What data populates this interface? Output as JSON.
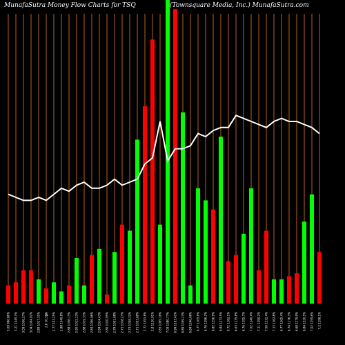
{
  "chart_data": {
    "type": "bar",
    "title_left": "MunafaSutra  Money Flow  Charts for TSQ",
    "title_right": "(Townsquare   Media,  Inc.) MunafaSutra.com",
    "colors": {
      "background": "#000000",
      "grid": "#b8621b",
      "up": "#00ff00",
      "down": "#ff0000",
      "line": "#ffffff"
    },
    "categories": [
      "3.09 996.86%",
      "3.21 1045.3%",
      "3.09 1036.27%",
      "3.04 1004.02%",
      "2.89 1017.31%",
      "2.8 10.35%",
      "2.77 103.25%",
      "2.88 1040.8%",
      "2.88 1036.13%",
      "2.90 1012.13%",
      "2.88 1019.33%",
      "2.84 1006.06%",
      "2.84 1014.43%",
      "2.80 1010.95%",
      "2.79 1051.08%",
      "2.71 1018.27%",
      "2.73 1038.32%",
      "2.71 1053.68%",
      "2.72 1053.8%",
      "2.8 1120.91%",
      "2.83 1095.16%",
      "7.09 1380.77%",
      "6.99 1163.42%",
      "6.89 1359.13%",
      "6.84 1246.68%",
      "6.77 1105.6%",
      "6.76 1296.3%",
      "6.82 1256.9%",
      "6.84 1273.5%",
      "6.72 1182.1%",
      "6.63 1135.8%",
      "6.76 1195.7%",
      "7.02 1240.4%",
      "7.11 1290.2%",
      "7.06 1132.4%",
      "7.13 1162.8%",
      "6.77 1165.4%",
      "6.74 1176.3%",
      "6.68 1179.9%",
      "6.84 1220.5%",
      "7.02 1255.6%",
      "7.2 1198.1%"
    ],
    "axis_stray_label": "%",
    "series": [
      {
        "values": [
          6,
          7,
          11,
          11,
          8,
          5,
          7,
          4,
          6,
          15,
          6,
          16,
          18,
          3,
          17,
          26,
          24,
          54,
          65,
          87,
          26,
          25,
          42,
          28,
          27,
          36,
          31,
          46,
          30,
          11,
          15,
          43,
          6,
          22,
          36,
          22,
          40,
          10,
          30,
          25,
          33,
          10
        ],
        "direction": [
          "down",
          "down",
          "down",
          "down",
          "up",
          "down",
          "up",
          "up",
          "down",
          "up",
          "up",
          "down",
          "up",
          "down",
          "up",
          "down",
          "up",
          "up",
          "down",
          "down",
          "up",
          "up",
          "down",
          "up",
          "up",
          "down",
          "up",
          "down",
          "up",
          "down",
          "up",
          "up",
          "down",
          "up",
          "down",
          "up",
          "up",
          "up",
          "down",
          "down",
          "up",
          "up"
        ]
      }
    ],
    "bar_overrides": [
      {
        "index": 21,
        "value": 100,
        "direction": "up"
      },
      {
        "index": 22,
        "value": 97,
        "direction": "down"
      },
      {
        "index": 23,
        "value": 63,
        "direction": "up"
      },
      {
        "index": 24,
        "value": 6,
        "direction": "up"
      },
      {
        "index": 25,
        "value": 38,
        "direction": "up"
      },
      {
        "index": 26,
        "value": 34,
        "direction": "up"
      },
      {
        "index": 27,
        "value": 31,
        "direction": "down"
      },
      {
        "index": 28,
        "value": 55,
        "direction": "up"
      },
      {
        "index": 29,
        "value": 14,
        "direction": "down"
      },
      {
        "index": 30,
        "value": 16,
        "direction": "down"
      },
      {
        "index": 31,
        "value": 23,
        "direction": "up"
      },
      {
        "index": 32,
        "value": 38,
        "direction": "up"
      },
      {
        "index": 33,
        "value": 11,
        "direction": "down"
      },
      {
        "index": 34,
        "value": 24,
        "direction": "down"
      },
      {
        "index": 35,
        "value": 8,
        "direction": "up"
      },
      {
        "index": 36,
        "value": 8,
        "direction": "up"
      },
      {
        "index": 37,
        "value": 9,
        "direction": "down"
      },
      {
        "index": 38,
        "value": 10,
        "direction": "down"
      },
      {
        "index": 39,
        "value": 27,
        "direction": "up"
      },
      {
        "index": 40,
        "value": 36,
        "direction": "up"
      },
      {
        "index": 41,
        "value": 17,
        "direction": "down"
      }
    ],
    "line_values": [
      36,
      35,
      34,
      34,
      35,
      34,
      36,
      38,
      37,
      39,
      40,
      38,
      38,
      39,
      41,
      39,
      40,
      41,
      46,
      48,
      60,
      47,
      51,
      51,
      52,
      56,
      55,
      57,
      58,
      58,
      62,
      61,
      60,
      59,
      58,
      60,
      61,
      60,
      60,
      59,
      58,
      56
    ],
    "ylim": [
      0,
      100
    ]
  }
}
